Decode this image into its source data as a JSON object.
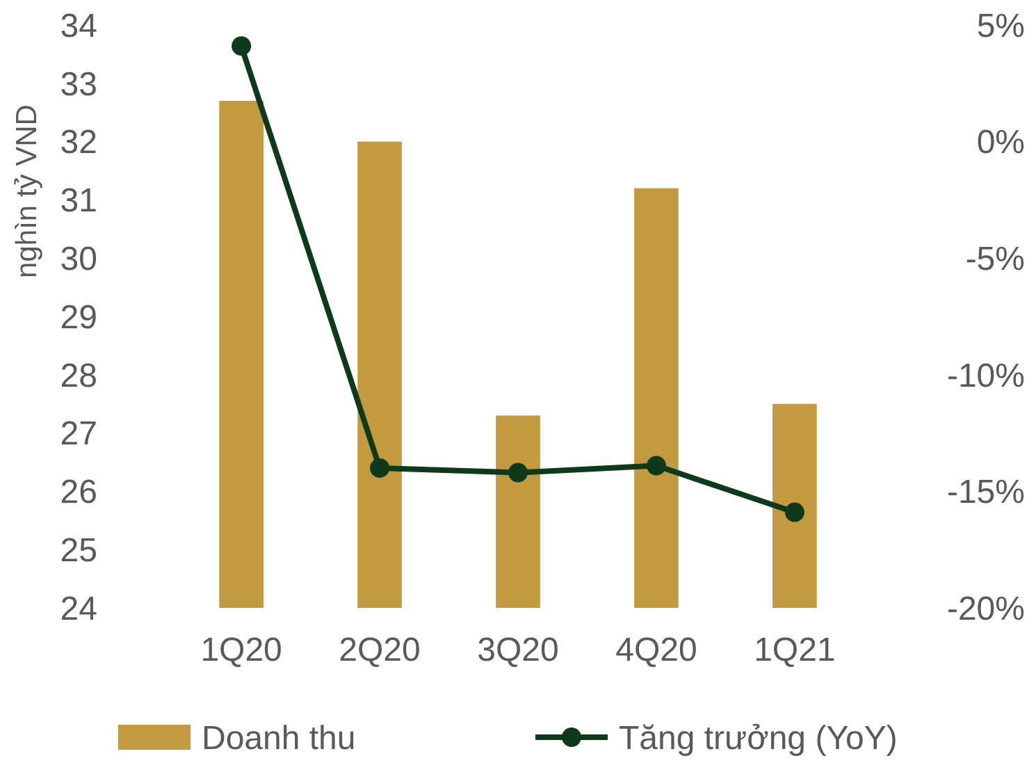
{
  "chart_data": {
    "type": "bar",
    "categories": [
      "1Q20",
      "2Q20",
      "3Q20",
      "4Q20",
      "1Q21"
    ],
    "ylabel": "nghìn tỷ VND",
    "ylim": [
      24,
      34
    ],
    "yticks": [
      24,
      25,
      26,
      27,
      28,
      29,
      30,
      31,
      32,
      33,
      34
    ],
    "y2lim": [
      -20,
      5
    ],
    "y2ticks": [
      {
        "value": -20,
        "label": "-20%"
      },
      {
        "value": -15,
        "label": "-15%"
      },
      {
        "value": -10,
        "label": "-10%"
      },
      {
        "value": -5,
        "label": "-5%"
      },
      {
        "value": 0,
        "label": "0%"
      },
      {
        "value": 5,
        "label": "5%"
      }
    ],
    "series": [
      {
        "name": "Doanh thu",
        "color": "#c49a3f",
        "values": [
          32.7,
          32.0,
          27.3,
          31.2,
          27.5
        ]
      },
      {
        "name": "Tăng trưởng (YoY)",
        "type": "line",
        "axis": "y2",
        "color": "#0d3a1a",
        "marker": "circle",
        "values": [
          4.1,
          -14.0,
          -14.2,
          -13.9,
          -15.9
        ]
      }
    ],
    "grid": false,
    "legend": "bottom"
  }
}
